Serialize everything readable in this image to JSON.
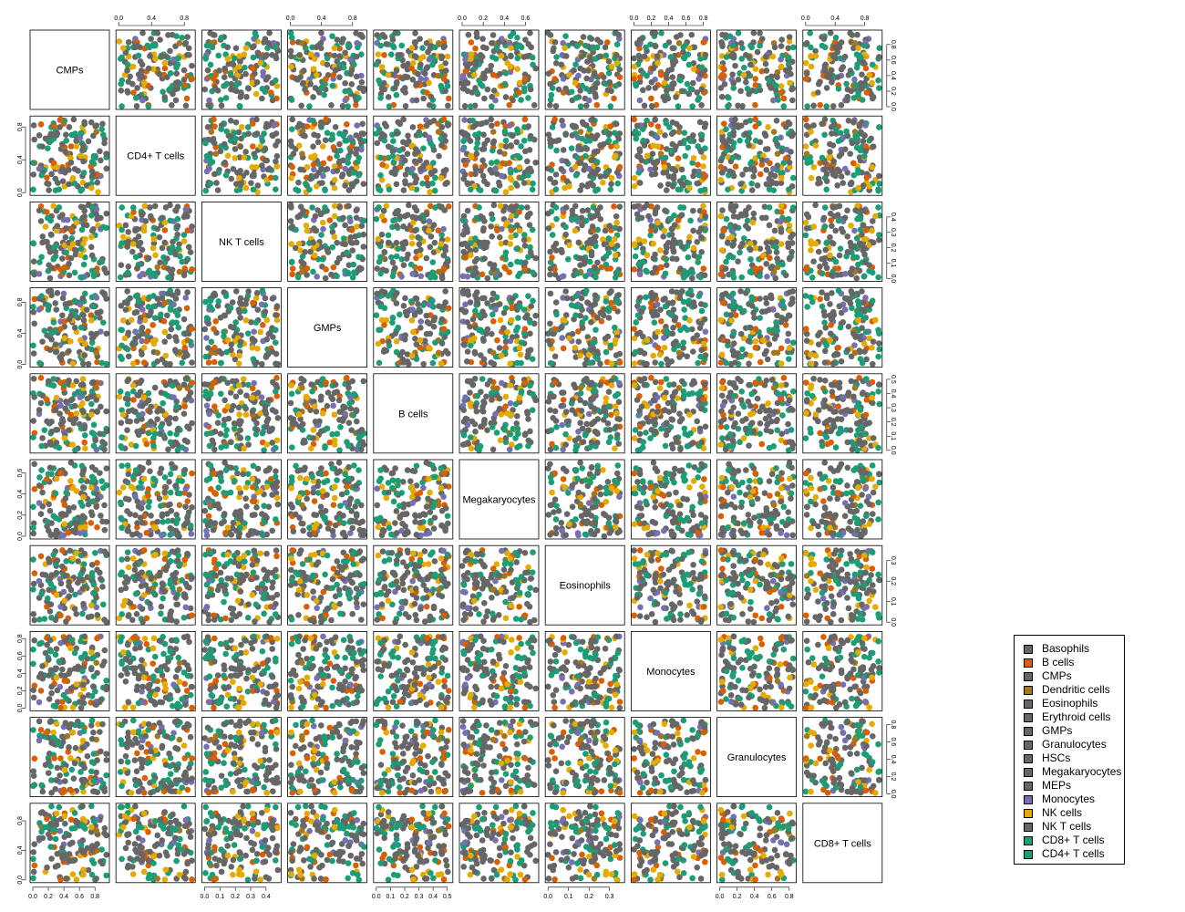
{
  "colors": {
    "Basophils": "#666666",
    "B cells": "#D95F02",
    "CMPs": "#666666",
    "Dendritic cells": "#A6761D",
    "Eosinophils": "#666666",
    "Erythroid cells": "#666666",
    "GMPs": "#666666",
    "Granulocytes": "#666666",
    "HSCs": "#666666",
    "Megakaryocytes": "#666666",
    "MEPs": "#666666",
    "Monocytes": "#7570B3",
    "NK cells": "#E6AB02",
    "NK T cells": "#666666",
    "CD8+ T cells": "#1B9E77",
    "CD4+ T cells": "#1B9E77"
  },
  "legend": {
    "entries": [
      "Basophils",
      "B cells",
      "CMPs",
      "Dendritic cells",
      "Eosinophils",
      "Erythroid cells",
      "GMPs",
      "Granulocytes",
      "HSCs",
      "Megakaryocytes",
      "MEPs",
      "Monocytes",
      "NK cells",
      "NK T cells",
      "CD8+ T cells",
      "CD4+ T cells"
    ]
  },
  "chart_data": {
    "type": "scatter",
    "subtype": "scatterplot-matrix",
    "variables": [
      "CMPs",
      "CD4+ T cells",
      "NK T cells",
      "GMPs",
      "B cells",
      "Megakaryocytes",
      "Eosinophils",
      "Monocytes",
      "Granulocytes",
      "CD8+ T cells"
    ],
    "ranges": [
      [
        0,
        0.95
      ],
      [
        0,
        0.9
      ],
      [
        0,
        0.48
      ],
      [
        0,
        0.95
      ],
      [
        0,
        0.52
      ],
      [
        0,
        0.7
      ],
      [
        0,
        0.36
      ],
      [
        0,
        0.85
      ],
      [
        0,
        0.85
      ],
      [
        0,
        1.0
      ]
    ],
    "ticks": [
      [
        "0.0",
        "0.2",
        "0.4",
        "0.6",
        "0.8"
      ],
      [
        "0.0",
        "0.4",
        "0.8"
      ],
      [
        "0.0",
        "0.1",
        "0.2",
        "0.3",
        "0.4"
      ],
      [
        "0.0",
        "0.4",
        "0.8"
      ],
      [
        "0.0",
        "0.1",
        "0.2",
        "0.3",
        "0.4",
        "0.5"
      ],
      [
        "0.0",
        "0.2",
        "0.4",
        "0.6"
      ],
      [
        "0.0",
        "0.1",
        "0.2",
        "0.3"
      ],
      [
        "0.0",
        "0.2",
        "0.4",
        "0.6",
        "0.8"
      ],
      [
        "0.0",
        "0.2",
        "0.4",
        "0.6",
        "0.8"
      ],
      [
        "0.0",
        "0.4",
        "0.8"
      ]
    ],
    "point_count_per_panel": 150,
    "axes": {
      "top": [
        1,
        3,
        5,
        7,
        9
      ],
      "bottom": [
        0,
        2,
        4,
        6,
        8
      ],
      "left": [
        1,
        3,
        5,
        7,
        9
      ],
      "right": [
        0,
        2,
        4,
        6,
        8
      ]
    },
    "legend_position": "bottom-right",
    "grid": false
  }
}
